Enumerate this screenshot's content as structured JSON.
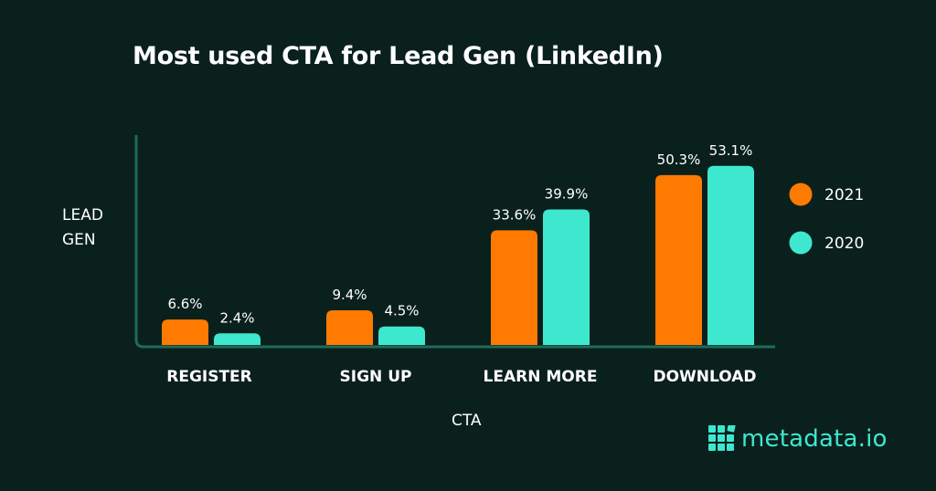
{
  "chart_data": {
    "type": "bar",
    "title": "Most used CTA for Lead Gen (LinkedIn)",
    "xlabel": "CTA",
    "ylabel": "LEAD GEN",
    "categories": [
      "REGISTER",
      "SIGN UP",
      "LEARN MORE",
      "DOWNLOAD"
    ],
    "series": [
      {
        "name": "2021",
        "color": "#ff7a00",
        "values": [
          6.6,
          9.4,
          33.6,
          50.3
        ],
        "labels": [
          "6.6%",
          "9.4%",
          "33.6%",
          "50.3%"
        ]
      },
      {
        "name": "2020",
        "color": "#3de8cf",
        "values": [
          2.4,
          4.5,
          39.9,
          53.1
        ],
        "labels": [
          "2.4%",
          "4.5%",
          "39.9%",
          "53.1%"
        ]
      }
    ],
    "ylim": [
      0,
      60
    ],
    "grid": false,
    "legend": "right"
  },
  "brand": {
    "name": "metadata.io",
    "color": "#3de8cf"
  },
  "colors": {
    "background": "#0a201d",
    "axis": "#1f6b5a"
  }
}
